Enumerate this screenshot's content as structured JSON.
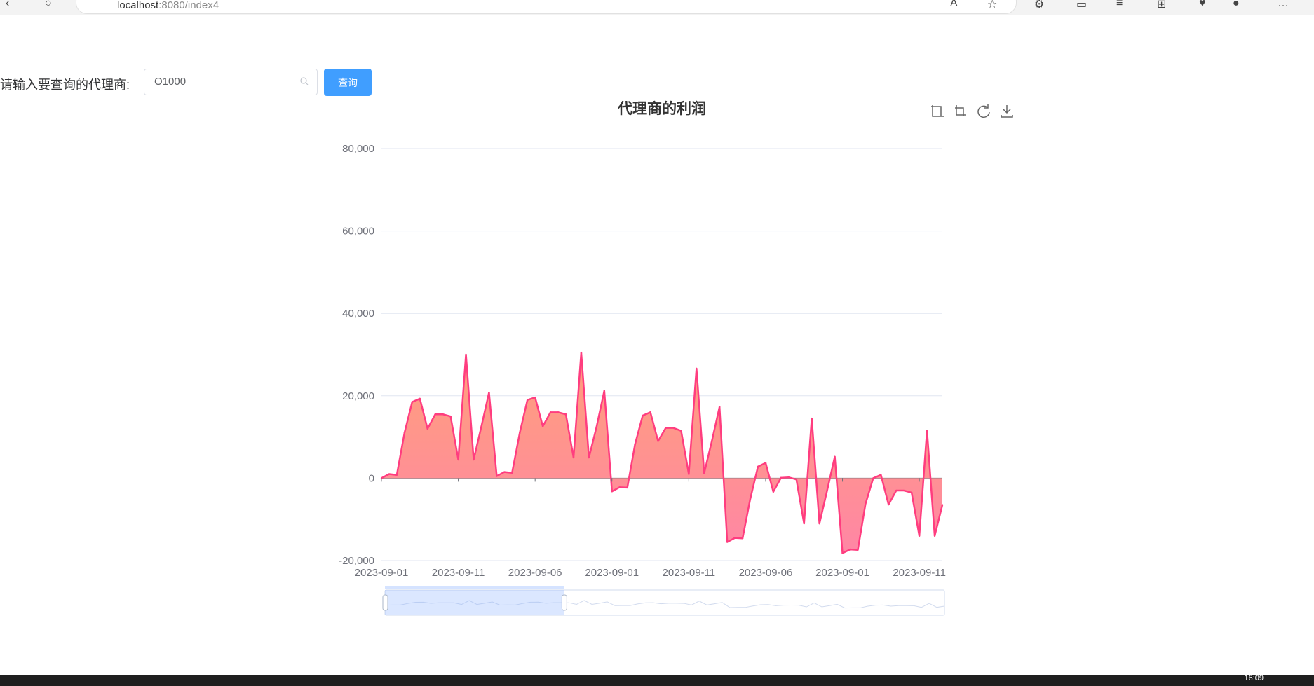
{
  "browser": {
    "url_host": "localhost",
    "url_rest": ":8080/index4"
  },
  "search": {
    "label": "请输入要查询的代理商:",
    "value": "O1000",
    "button_label": "查询"
  },
  "colors": {
    "accent": "#409eff",
    "line": "#ff3d7f",
    "area_top": "#ffa07a",
    "area_bottom": "#ff86a5"
  },
  "toolbox": [
    "zoom-icon",
    "zoom-reset-icon",
    "restore-icon",
    "save-image-icon"
  ],
  "taskbar": {
    "clock": "16:09"
  },
  "chart_data": {
    "type": "area",
    "title": "代理商的利润",
    "ylim": [
      -20000,
      80000
    ],
    "yticks": [
      -20000,
      0,
      20000,
      40000,
      60000,
      80000
    ],
    "ytick_labels": [
      "-20,000",
      "0",
      "20,000",
      "40,000",
      "60,000",
      "80,000"
    ],
    "xtick_labels": [
      "2023-09-01",
      "2023-09-11",
      "2023-09-06",
      "2023-09-01",
      "2023-09-11",
      "2023-09-06",
      "2023-09-01",
      "2023-09-11"
    ],
    "grid": true,
    "series": [
      {
        "values": [
          0,
          1000,
          800,
          11000,
          18500,
          19300,
          12000,
          15500,
          15500,
          15000,
          4500,
          30000,
          4500,
          12500,
          20800,
          500,
          1500,
          1300,
          11000,
          19000,
          19600,
          12600,
          16000,
          16000,
          15500,
          5000,
          30500,
          5000,
          12500,
          21200,
          -3200,
          -2200,
          -2300,
          8200,
          15200,
          16000,
          9000,
          12200,
          12200,
          11500,
          1000,
          26600,
          1200,
          9000,
          17300,
          -15500,
          -14500,
          -14600,
          -5000,
          2800,
          3700,
          -3300,
          100,
          200,
          -300,
          -11000,
          14500,
          -11000,
          -3000,
          5200,
          -18200,
          -17300,
          -17400,
          -6200,
          0,
          800,
          -6400,
          -3000,
          -3000,
          -3500,
          -14000,
          11600,
          -14000,
          -6500
        ]
      }
    ],
    "datazoom": {
      "start": 0,
      "end": 0.32
    }
  }
}
